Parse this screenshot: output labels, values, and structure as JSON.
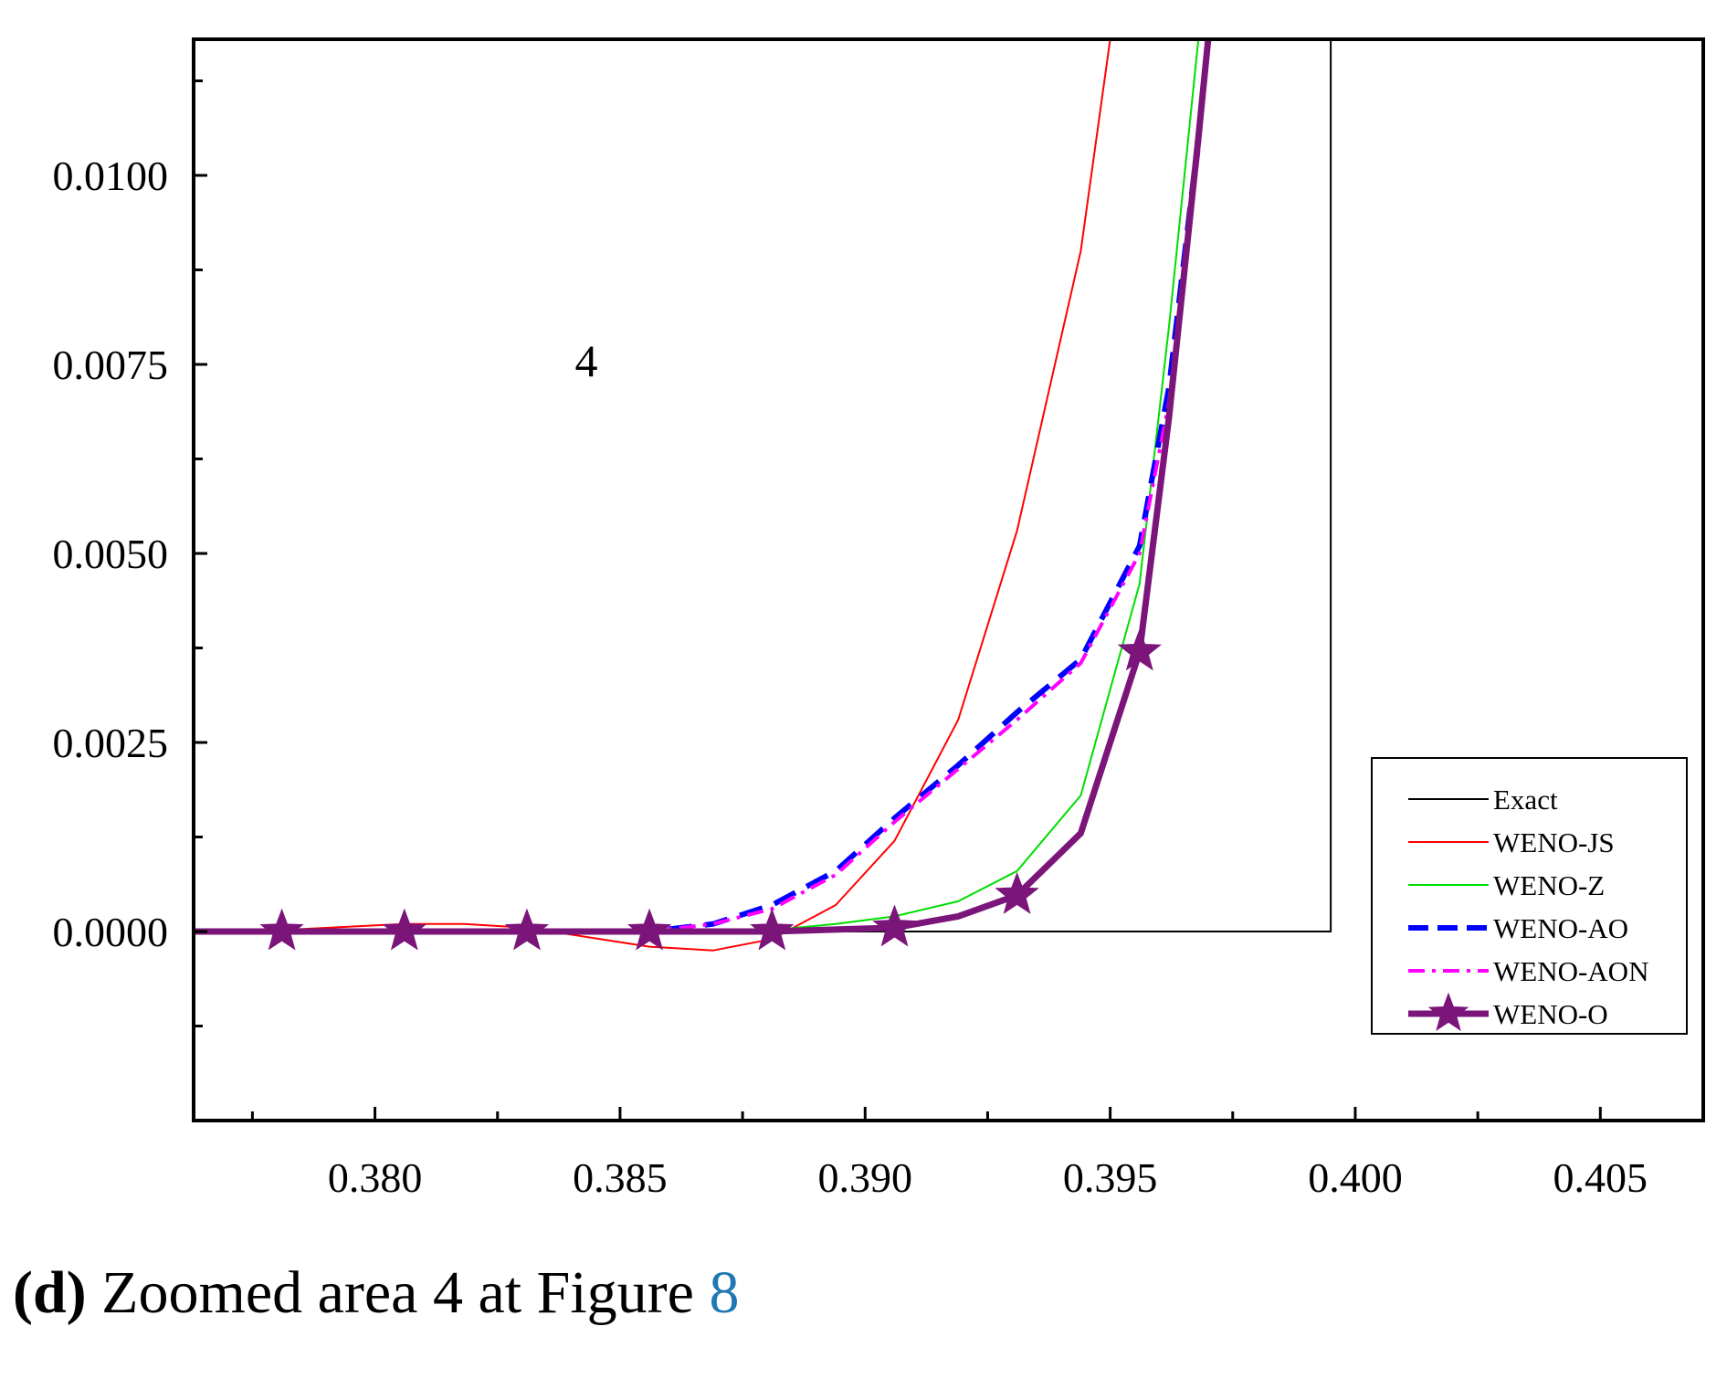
{
  "chart_data": {
    "type": "line",
    "title": "",
    "xlabel": "",
    "ylabel": "",
    "xlim": [
      0.3763,
      0.4071
    ],
    "ylim": [
      -0.0025,
      0.0118
    ],
    "xticks": [
      0.38,
      0.385,
      0.39,
      0.395,
      0.4,
      0.405
    ],
    "xtick_labels": [
      "0.380",
      "0.385",
      "0.390",
      "0.395",
      "0.400",
      "0.405"
    ],
    "yticks": [
      0.0,
      0.0025,
      0.005,
      0.0075,
      0.01
    ],
    "ytick_labels": [
      "0.0000",
      "0.0025",
      "0.0050",
      "0.0075",
      "0.0100"
    ],
    "annotation": "4",
    "legend_position": "bottom-right",
    "series": [
      {
        "name": "Exact",
        "color": "#000000",
        "style": "solid",
        "x": [
          0.3763,
          0.3995,
          0.3995
        ],
        "y": [
          0.0,
          0.0,
          0.0118
        ]
      },
      {
        "name": "WENO-JS",
        "color": "#ff0000",
        "style": "solid",
        "x": [
          0.3763,
          0.3781,
          0.3806,
          0.3818,
          0.3831,
          0.3856,
          0.3869,
          0.3881,
          0.3894,
          0.3906,
          0.3919,
          0.3931,
          0.3944,
          0.395
        ],
        "y": [
          0.0,
          2e-05,
          0.0001,
          0.0001,
          5e-05,
          -0.0002,
          -0.00025,
          -0.0001,
          0.00035,
          0.0012,
          0.0028,
          0.0053,
          0.009,
          0.0118
        ]
      },
      {
        "name": "WENO-Z",
        "color": "#00dd00",
        "style": "solid",
        "x": [
          0.3763,
          0.3856,
          0.3881,
          0.3894,
          0.3906,
          0.3919,
          0.3931,
          0.3944,
          0.3956,
          0.3962,
          0.3968
        ],
        "y": [
          0.0,
          0.0,
          2e-05,
          0.0001,
          0.0002,
          0.0004,
          0.0008,
          0.0018,
          0.0046,
          0.008,
          0.0118
        ]
      },
      {
        "name": "WENO-AO",
        "color": "#0000ff",
        "style": "dashed",
        "x": [
          0.3763,
          0.3856,
          0.3869,
          0.3881,
          0.3894,
          0.3906,
          0.3919,
          0.3931,
          0.3944,
          0.3956,
          0.3962,
          0.3968,
          0.397
        ],
        "y": [
          0.0,
          0.0,
          0.0001,
          0.00035,
          0.0008,
          0.0015,
          0.0022,
          0.0029,
          0.0036,
          0.0051,
          0.0072,
          0.0105,
          0.0118
        ]
      },
      {
        "name": "WENO-AON",
        "color": "#ff00ff",
        "style": "dashdot",
        "x": [
          0.3763,
          0.3856,
          0.3869,
          0.3881,
          0.3894,
          0.3906,
          0.3919,
          0.3931,
          0.3944,
          0.3956,
          0.3962,
          0.3968,
          0.397
        ],
        "y": [
          0.0,
          0.0,
          0.0001,
          0.0003,
          0.00075,
          0.00145,
          0.00215,
          0.0028,
          0.00355,
          0.005,
          0.007,
          0.0103,
          0.0118
        ]
      },
      {
        "name": "WENO-O",
        "color": "#7b157a",
        "style": "solid-star",
        "x": [
          0.3763,
          0.3781,
          0.3806,
          0.3831,
          0.3856,
          0.3881,
          0.3906,
          0.3919,
          0.3931,
          0.3944,
          0.3956,
          0.3962,
          0.3968,
          0.397
        ],
        "y": [
          0.0,
          0.0,
          0.0,
          0.0,
          0.0,
          0.0,
          5e-05,
          0.0002,
          0.00048,
          0.0013,
          0.0037,
          0.0068,
          0.0105,
          0.0118
        ],
        "markers_x": [
          0.3781,
          0.3806,
          0.3831,
          0.3856,
          0.3881,
          0.3906,
          0.3931,
          0.3956
        ],
        "markers_y": [
          0.0,
          0.0,
          0.0,
          0.0,
          0.0,
          5e-05,
          0.00048,
          0.0037
        ]
      }
    ]
  },
  "caption": {
    "label": "(d)",
    "text": " Zoomed area 4 at Figure ",
    "ref": "8"
  }
}
